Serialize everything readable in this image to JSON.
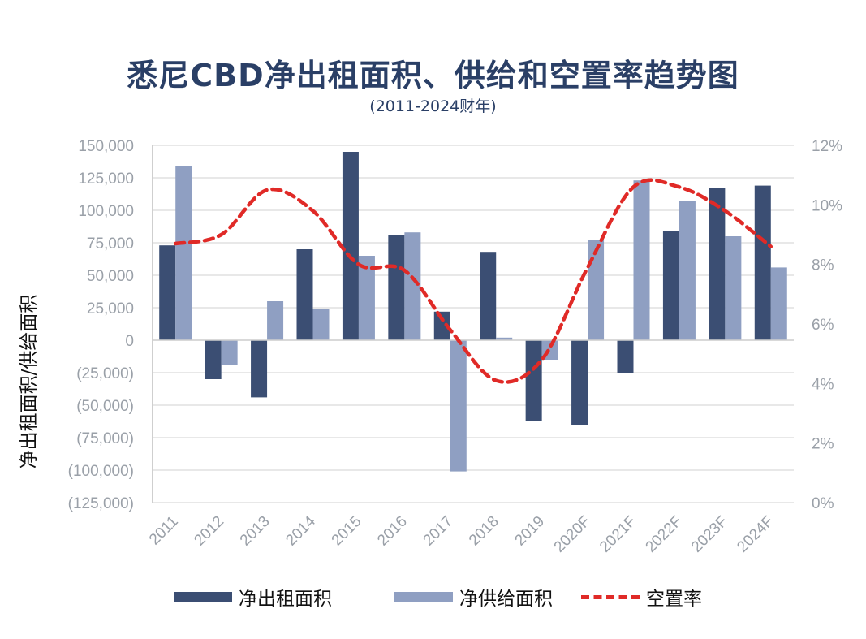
{
  "title": "悉尼CBD净出租面积、供给和空置率趋势图",
  "subtitle": "(2011-2024财年)",
  "chart_data": {
    "type": "bar",
    "categories": [
      "2011",
      "2012",
      "2013",
      "2014",
      "2015",
      "2016",
      "2017",
      "2018",
      "2019",
      "2020F",
      "2021F",
      "2022F",
      "2023F",
      "2024F"
    ],
    "series": [
      {
        "name": "净出租面积",
        "type": "bar",
        "axis": "left",
        "color": "#3b4e73",
        "values": [
          73000,
          -30000,
          -44000,
          70000,
          145000,
          81000,
          22000,
          68000,
          -62000,
          -65000,
          -25000,
          84000,
          117000,
          119000
        ]
      },
      {
        "name": "净供给面积",
        "type": "bar",
        "axis": "left",
        "color": "#8f9fc2",
        "values": [
          134000,
          -19000,
          30000,
          24000,
          65000,
          83000,
          -101000,
          2000,
          -15000,
          77000,
          123000,
          107000,
          80000,
          56000
        ]
      },
      {
        "name": "空置率",
        "type": "line",
        "axis": "right",
        "color": "#e02a27",
        "style": "dashed-smooth",
        "values": [
          8.7,
          9.0,
          10.5,
          9.8,
          8.0,
          7.8,
          5.8,
          4.1,
          4.8,
          7.9,
          10.6,
          10.6,
          9.8,
          8.6
        ]
      }
    ],
    "ylabel": "净出租面积/供给面积",
    "y_left": {
      "min": -125000,
      "max": 150000,
      "step": 25000,
      "tick_labels": [
        "(125,000)",
        "(100,000)",
        "(75,000)",
        "(50,000)",
        "(25,000)",
        "0",
        "25,000",
        "50,000",
        "75,000",
        "100,000",
        "125,000",
        "150,000"
      ]
    },
    "y_right": {
      "min": 0,
      "max": 12,
      "step": 2,
      "tick_labels": [
        "0%",
        "2%",
        "4%",
        "6%",
        "8%",
        "10%",
        "12%"
      ]
    },
    "grid": true,
    "legend": "bottom"
  }
}
